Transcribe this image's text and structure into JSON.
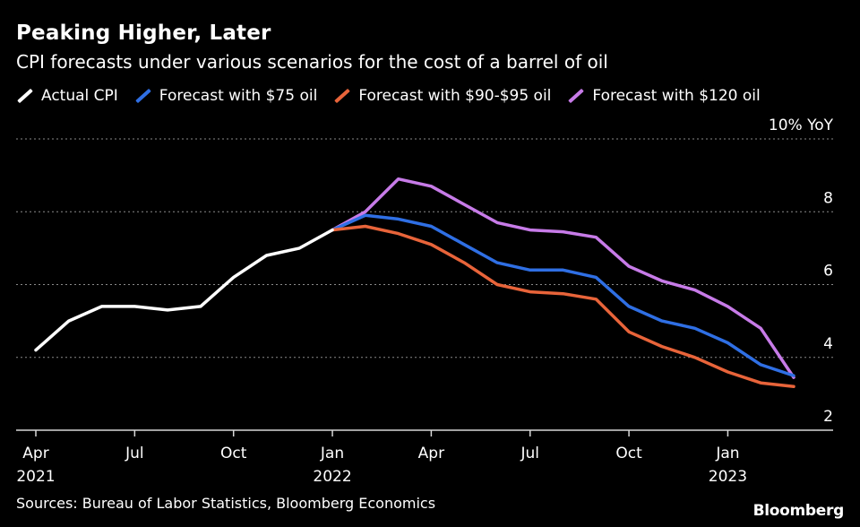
{
  "header": {
    "title": "Peaking Higher, Later",
    "subtitle": "CPI forecasts under various scenarios for the cost of a barrel of oil"
  },
  "legend": [
    {
      "label": "Actual CPI",
      "color": "#ffffff"
    },
    {
      "label": "Forecast with $75 oil",
      "color": "#2f6fe4"
    },
    {
      "label": "Forecast with $90-$95 oil",
      "color": "#e8643a"
    },
    {
      "label": "Forecast with $120 oil",
      "color": "#c77be8"
    }
  ],
  "footer": {
    "source": "Sources: Bureau of Labor Statistics, Bloomberg Economics",
    "brand": "Bloomberg"
  },
  "chart_data": {
    "type": "line",
    "title": "Peaking Higher, Later",
    "subtitle": "CPI forecasts under various scenarios for the cost of a barrel of oil",
    "ylabel": "% YoY",
    "ylim": [
      2,
      10
    ],
    "yticks": [
      {
        "value": 10,
        "label": "10% YoY"
      },
      {
        "value": 8,
        "label": "8"
      },
      {
        "value": 6,
        "label": "6"
      },
      {
        "value": 4,
        "label": "4"
      },
      {
        "value": 2,
        "label": "2"
      }
    ],
    "xlim": [
      0,
      23.5
    ],
    "xticks": [
      {
        "index": 0,
        "label": "Apr",
        "year": "2021"
      },
      {
        "index": 3,
        "label": "Jul",
        "year": ""
      },
      {
        "index": 6,
        "label": "Oct",
        "year": ""
      },
      {
        "index": 9,
        "label": "Jan",
        "year": "2022"
      },
      {
        "index": 12,
        "label": "Apr",
        "year": ""
      },
      {
        "index": 15,
        "label": "Jul",
        "year": ""
      },
      {
        "index": 18,
        "label": "Oct",
        "year": ""
      },
      {
        "index": 21,
        "label": "Jan",
        "year": "2023"
      }
    ],
    "series": [
      {
        "name": "Actual CPI",
        "color": "#ffffff",
        "x": [
          0,
          1,
          2,
          3,
          4,
          5,
          6,
          7,
          8,
          9
        ],
        "values": [
          4.2,
          5.0,
          5.4,
          5.4,
          5.3,
          5.4,
          6.2,
          6.8,
          7.0,
          7.5
        ]
      },
      {
        "name": "Forecast with $75 oil",
        "color": "#2f6fe4",
        "x": [
          9,
          10,
          11,
          12,
          13,
          14,
          15,
          16,
          17,
          18,
          19,
          20,
          21,
          22,
          23
        ],
        "values": [
          7.5,
          7.9,
          7.8,
          7.6,
          7.1,
          6.6,
          6.4,
          6.4,
          6.2,
          5.4,
          5.0,
          4.8,
          4.4,
          3.8,
          3.5
        ]
      },
      {
        "name": "Forecast with $90-$95 oil",
        "color": "#e8643a",
        "x": [
          9,
          10,
          11,
          12,
          13,
          14,
          15,
          16,
          17,
          18,
          19,
          20,
          21,
          22,
          23
        ],
        "values": [
          7.5,
          7.6,
          7.4,
          7.1,
          6.6,
          6.0,
          5.8,
          5.75,
          5.6,
          4.7,
          4.3,
          4.0,
          3.6,
          3.3,
          3.2
        ]
      },
      {
        "name": "Forecast with $120 oil",
        "color": "#c77be8",
        "x": [
          9,
          10,
          11,
          12,
          13,
          14,
          15,
          16,
          17,
          18,
          19,
          20,
          21,
          22,
          23
        ],
        "values": [
          7.5,
          8.0,
          8.9,
          8.7,
          8.2,
          7.7,
          7.5,
          7.45,
          7.3,
          6.5,
          6.1,
          5.85,
          5.4,
          4.8,
          3.45
        ]
      }
    ]
  }
}
